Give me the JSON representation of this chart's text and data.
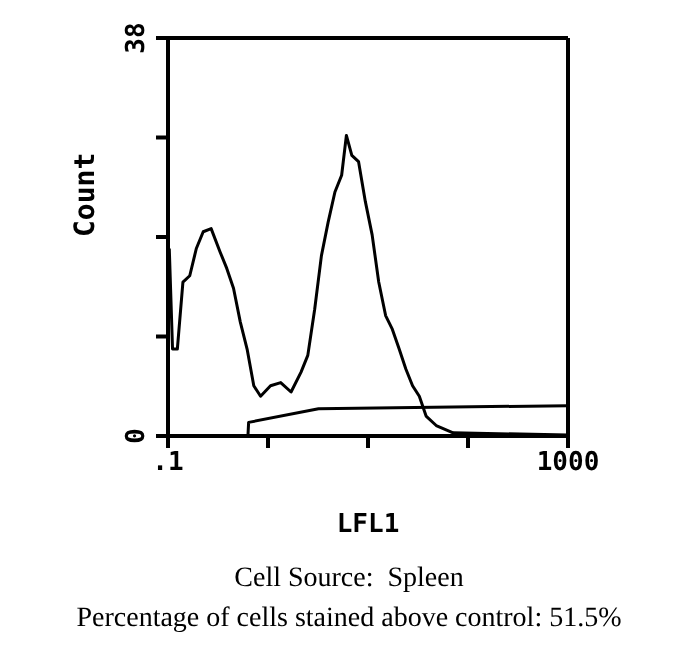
{
  "chart_data": {
    "type": "line",
    "xlabel": "LFL1",
    "ylabel": "Count",
    "log": "x",
    "marker": "none",
    "line_style": "solid",
    "xlim": [
      0.1,
      1000
    ],
    "ylim": [
      0,
      38
    ],
    "xticks": [
      {
        "value": 0.1,
        "label": ".1"
      },
      {
        "value": 1,
        "label": null
      },
      {
        "value": 10,
        "label": null
      },
      {
        "value": 100,
        "label": null
      },
      1000
    ],
    "yticks": [
      0,
      {
        "value": 9.5,
        "label": null
      },
      {
        "value": 19,
        "label": null
      },
      {
        "value": 28.5,
        "label": null
      },
      38
    ],
    "series": [
      {
        "color": "#000000",
        "x": [
          0.103,
          0.111,
          0.124,
          0.141,
          0.165,
          0.192,
          0.225,
          0.27,
          0.331,
          0.387,
          0.452,
          0.528,
          0.618,
          0.721,
          0.843,
          1.06,
          1.34,
          1.7,
          2.14,
          2.5,
          2.93,
          3.42,
          3.99,
          4.67,
          5.45,
          6.08,
          6.89,
          8.04,
          9.4,
          11,
          12.8,
          15,
          17.5,
          20.5,
          23.9,
          27.9,
          32.6,
          38.1,
          48.1,
          71,
          1000
        ],
        "values": [
          17.9,
          8.3,
          8.3,
          14.7,
          15.3,
          17.9,
          19.5,
          19.8,
          17.6,
          16,
          14.1,
          10.9,
          8.3,
          4.8,
          3.8,
          4.8,
          5.1,
          4.2,
          6.1,
          7.7,
          12.1,
          17.2,
          20.4,
          23.3,
          24.9,
          28.7,
          26.8,
          26.2,
          22.4,
          19.2,
          14.7,
          11.5,
          10.2,
          8.3,
          6.4,
          4.8,
          3.8,
          1.9,
          1,
          0.3,
          0.1
        ]
      },
      {
        "color": "#000000",
        "x": [
          0.63,
          0.64,
          3.2,
          1000
        ],
        "values": [
          0,
          1.3,
          2.6,
          2.9
        ]
      }
    ],
    "annotations": [
      "Cell Source:  Spleen",
      "Percentage of cells stained above control: 51.5%"
    ]
  }
}
